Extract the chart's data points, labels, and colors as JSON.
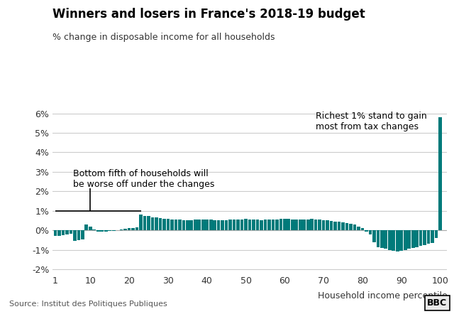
{
  "title": "Winners and losers in France's 2018-19 budget",
  "subtitle": "% change in disposable income for all households",
  "xlabel": "Household income percentile",
  "source": "Source: Institut des Politiques Publiques",
  "bar_color": "#007a7a",
  "background_color": "#ffffff",
  "ylim": [
    -2.2,
    6.5
  ],
  "yticks": [
    -2,
    -1,
    0,
    1,
    2,
    3,
    4,
    5,
    6
  ],
  "xticks": [
    1,
    10,
    20,
    30,
    40,
    50,
    60,
    70,
    80,
    90,
    100
  ],
  "annotation1_text": "Bottom fifth of households will\nbe worse off under the changes",
  "annotation2_text": "Richest 1% stand to gain\nmost from tax changes",
  "values": [
    -0.3,
    -0.28,
    -0.25,
    -0.22,
    -0.18,
    -0.55,
    -0.52,
    -0.48,
    0.3,
    0.18,
    0.05,
    -0.05,
    -0.08,
    -0.06,
    -0.04,
    -0.02,
    0.0,
    0.05,
    0.08,
    0.1,
    0.12,
    0.15,
    0.8,
    0.75,
    0.72,
    0.68,
    0.65,
    0.62,
    0.6,
    0.58,
    0.56,
    0.55,
    0.54,
    0.52,
    0.5,
    0.52,
    0.54,
    0.55,
    0.56,
    0.55,
    0.54,
    0.53,
    0.52,
    0.52,
    0.53,
    0.54,
    0.55,
    0.56,
    0.57,
    0.58,
    0.56,
    0.55,
    0.54,
    0.53,
    0.54,
    0.55,
    0.56,
    0.57,
    0.58,
    0.59,
    0.58,
    0.57,
    0.56,
    0.55,
    0.56,
    0.57,
    0.58,
    0.56,
    0.54,
    0.52,
    0.5,
    0.48,
    0.46,
    0.44,
    0.42,
    0.38,
    0.35,
    0.3,
    0.2,
    0.1,
    -0.05,
    -0.2,
    -0.6,
    -0.85,
    -0.9,
    -0.95,
    -1.0,
    -1.05,
    -1.1,
    -1.05,
    -1.0,
    -0.95,
    -0.9,
    -0.85,
    -0.8,
    -0.75,
    -0.7,
    -0.65,
    -0.4,
    5.8
  ]
}
